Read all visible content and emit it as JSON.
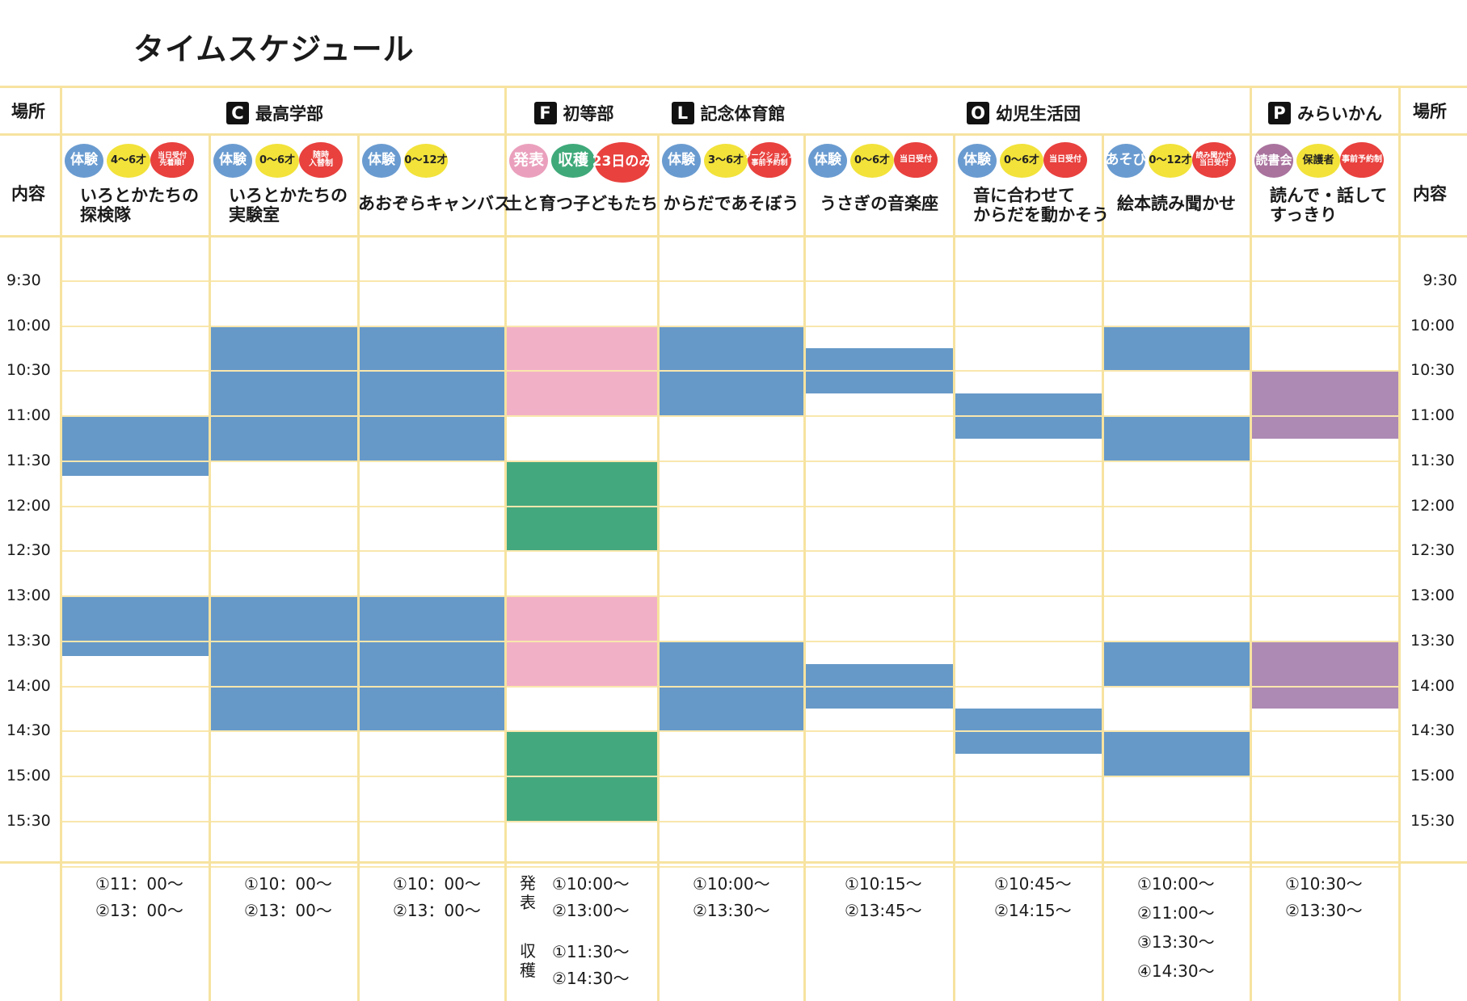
{
  "title": "タイムスケジュール",
  "labels": {
    "place": "場所",
    "content": "内容"
  },
  "places": [
    {
      "key": "C",
      "name": "最高学部"
    },
    {
      "key": "F",
      "name": "初等部"
    },
    {
      "key": "L",
      "name": "記念体育館"
    },
    {
      "key": "O",
      "name": "幼児生活団"
    },
    {
      "key": "P",
      "name": "みらいかん"
    }
  ],
  "time_labels": [
    "9:30",
    "10:00",
    "10:30",
    "11:00",
    "11:30",
    "12:00",
    "12:30",
    "13:00",
    "13:30",
    "14:00",
    "14:30",
    "15:00",
    "15:30"
  ],
  "columns": [
    {
      "title": "いろとかたちの\n探検隊",
      "badges": [
        "体験",
        "4〜6才",
        "当日受付\n先着順!"
      ],
      "footer": [
        "①11：00～",
        "②13：00～"
      ]
    },
    {
      "title": "いろとかたちの\n実験室",
      "badges": [
        "体験",
        "0〜6才",
        "随時\n入替制"
      ],
      "footer": [
        "①10：00～",
        "②13：00～"
      ]
    },
    {
      "title": "あおぞらキャンバス",
      "badges": [
        "体験",
        "0〜12才"
      ],
      "footer": [
        "①10：00～",
        "②13：00～"
      ]
    },
    {
      "title": "土と育つ子どもたち",
      "badges": [
        "発表",
        "収穫",
        "23日のみ"
      ],
      "footer_groups": [
        {
          "label": "発表",
          "times": [
            "①10:00～",
            "②13:00～"
          ]
        },
        {
          "label": "収穫",
          "times": [
            "①11:30～",
            "②14:30～"
          ]
        }
      ]
    },
    {
      "title": "からだであそぼう",
      "badges": [
        "体験",
        "3〜6才",
        "ワークショップ\n事前予約制"
      ],
      "footer": [
        "①10:00～",
        "②13:30～"
      ]
    },
    {
      "title": "うさぎの音楽座",
      "badges": [
        "体験",
        "0〜6才",
        "当日受付"
      ],
      "footer": [
        "①10:15～",
        "②13:45～"
      ]
    },
    {
      "title": "音に合わせて\nからだを動かそう",
      "badges": [
        "体験",
        "0〜6才",
        "当日受付"
      ],
      "footer": [
        "①10:45～",
        "②14:15～"
      ]
    },
    {
      "title": "絵本読み聞かせ",
      "badges": [
        "あそび",
        "0〜12才",
        "読み聞かせ\n当日受付"
      ],
      "footer": [
        "①10:00～",
        "②11:00～",
        "③13:30～",
        "④14:30～"
      ]
    },
    {
      "title": "読んで・話して\nすっきり",
      "badges": [
        "読書会",
        "保護者",
        "事前予約制"
      ],
      "footer": [
        "①10:30～",
        "②13:30～"
      ]
    }
  ],
  "sessions": [
    {
      "col": 0,
      "start": "11:00",
      "end": "11:40",
      "kind": "体験",
      "color": "#6699c8"
    },
    {
      "col": 0,
      "start": "13:00",
      "end": "13:40",
      "kind": "体験",
      "color": "#6699c8"
    },
    {
      "col": 1,
      "start": "10:00",
      "end": "11:30",
      "kind": "体験",
      "color": "#6699c8"
    },
    {
      "col": 1,
      "start": "13:00",
      "end": "14:30",
      "kind": "体験",
      "color": "#6699c8"
    },
    {
      "col": 2,
      "start": "10:00",
      "end": "11:30",
      "kind": "体験",
      "color": "#6699c8"
    },
    {
      "col": 2,
      "start": "13:00",
      "end": "14:30",
      "kind": "体験",
      "color": "#6699c8"
    },
    {
      "col": 3,
      "start": "10:00",
      "end": "11:00",
      "kind": "発表",
      "color": "#f2b0c6"
    },
    {
      "col": 3,
      "start": "11:30",
      "end": "12:30",
      "kind": "収穫",
      "color": "#44a87e"
    },
    {
      "col": 3,
      "start": "13:00",
      "end": "14:00",
      "kind": "発表",
      "color": "#f2b0c6"
    },
    {
      "col": 3,
      "start": "14:30",
      "end": "15:30",
      "kind": "収穫",
      "color": "#44a87e"
    },
    {
      "col": 4,
      "start": "10:00",
      "end": "11:00",
      "kind": "体験",
      "color": "#6699c8"
    },
    {
      "col": 4,
      "start": "13:30",
      "end": "14:30",
      "kind": "体験",
      "color": "#6699c8"
    },
    {
      "col": 5,
      "start": "10:15",
      "end": "10:45",
      "kind": "体験",
      "color": "#6699c8"
    },
    {
      "col": 5,
      "start": "13:45",
      "end": "14:15",
      "kind": "体験",
      "color": "#6699c8"
    },
    {
      "col": 6,
      "start": "10:45",
      "end": "11:15",
      "kind": "体験",
      "color": "#6699c8"
    },
    {
      "col": 6,
      "start": "14:15",
      "end": "14:45",
      "kind": "体験",
      "color": "#6699c8"
    },
    {
      "col": 7,
      "start": "10:00",
      "end": "10:30",
      "kind": "あそび",
      "color": "#6699c8"
    },
    {
      "col": 7,
      "start": "11:00",
      "end": "11:30",
      "kind": "あそび",
      "color": "#6699c8"
    },
    {
      "col": 7,
      "start": "13:30",
      "end": "14:00",
      "kind": "あそび",
      "color": "#6699c8"
    },
    {
      "col": 7,
      "start": "14:30",
      "end": "15:00",
      "kind": "あそび",
      "color": "#6699c8"
    },
    {
      "col": 8,
      "start": "10:30",
      "end": "11:15",
      "kind": "読書会",
      "color": "#ad8ab4"
    },
    {
      "col": 8,
      "start": "13:30",
      "end": "14:15",
      "kind": "読書会",
      "color": "#ad8ab4"
    }
  ],
  "colors": {
    "grid": "#f7e3a0",
    "体験": "#6699c8",
    "発表": "#f2b0c6",
    "収穫": "#44a87e",
    "読書会": "#ad8ab4"
  }
}
